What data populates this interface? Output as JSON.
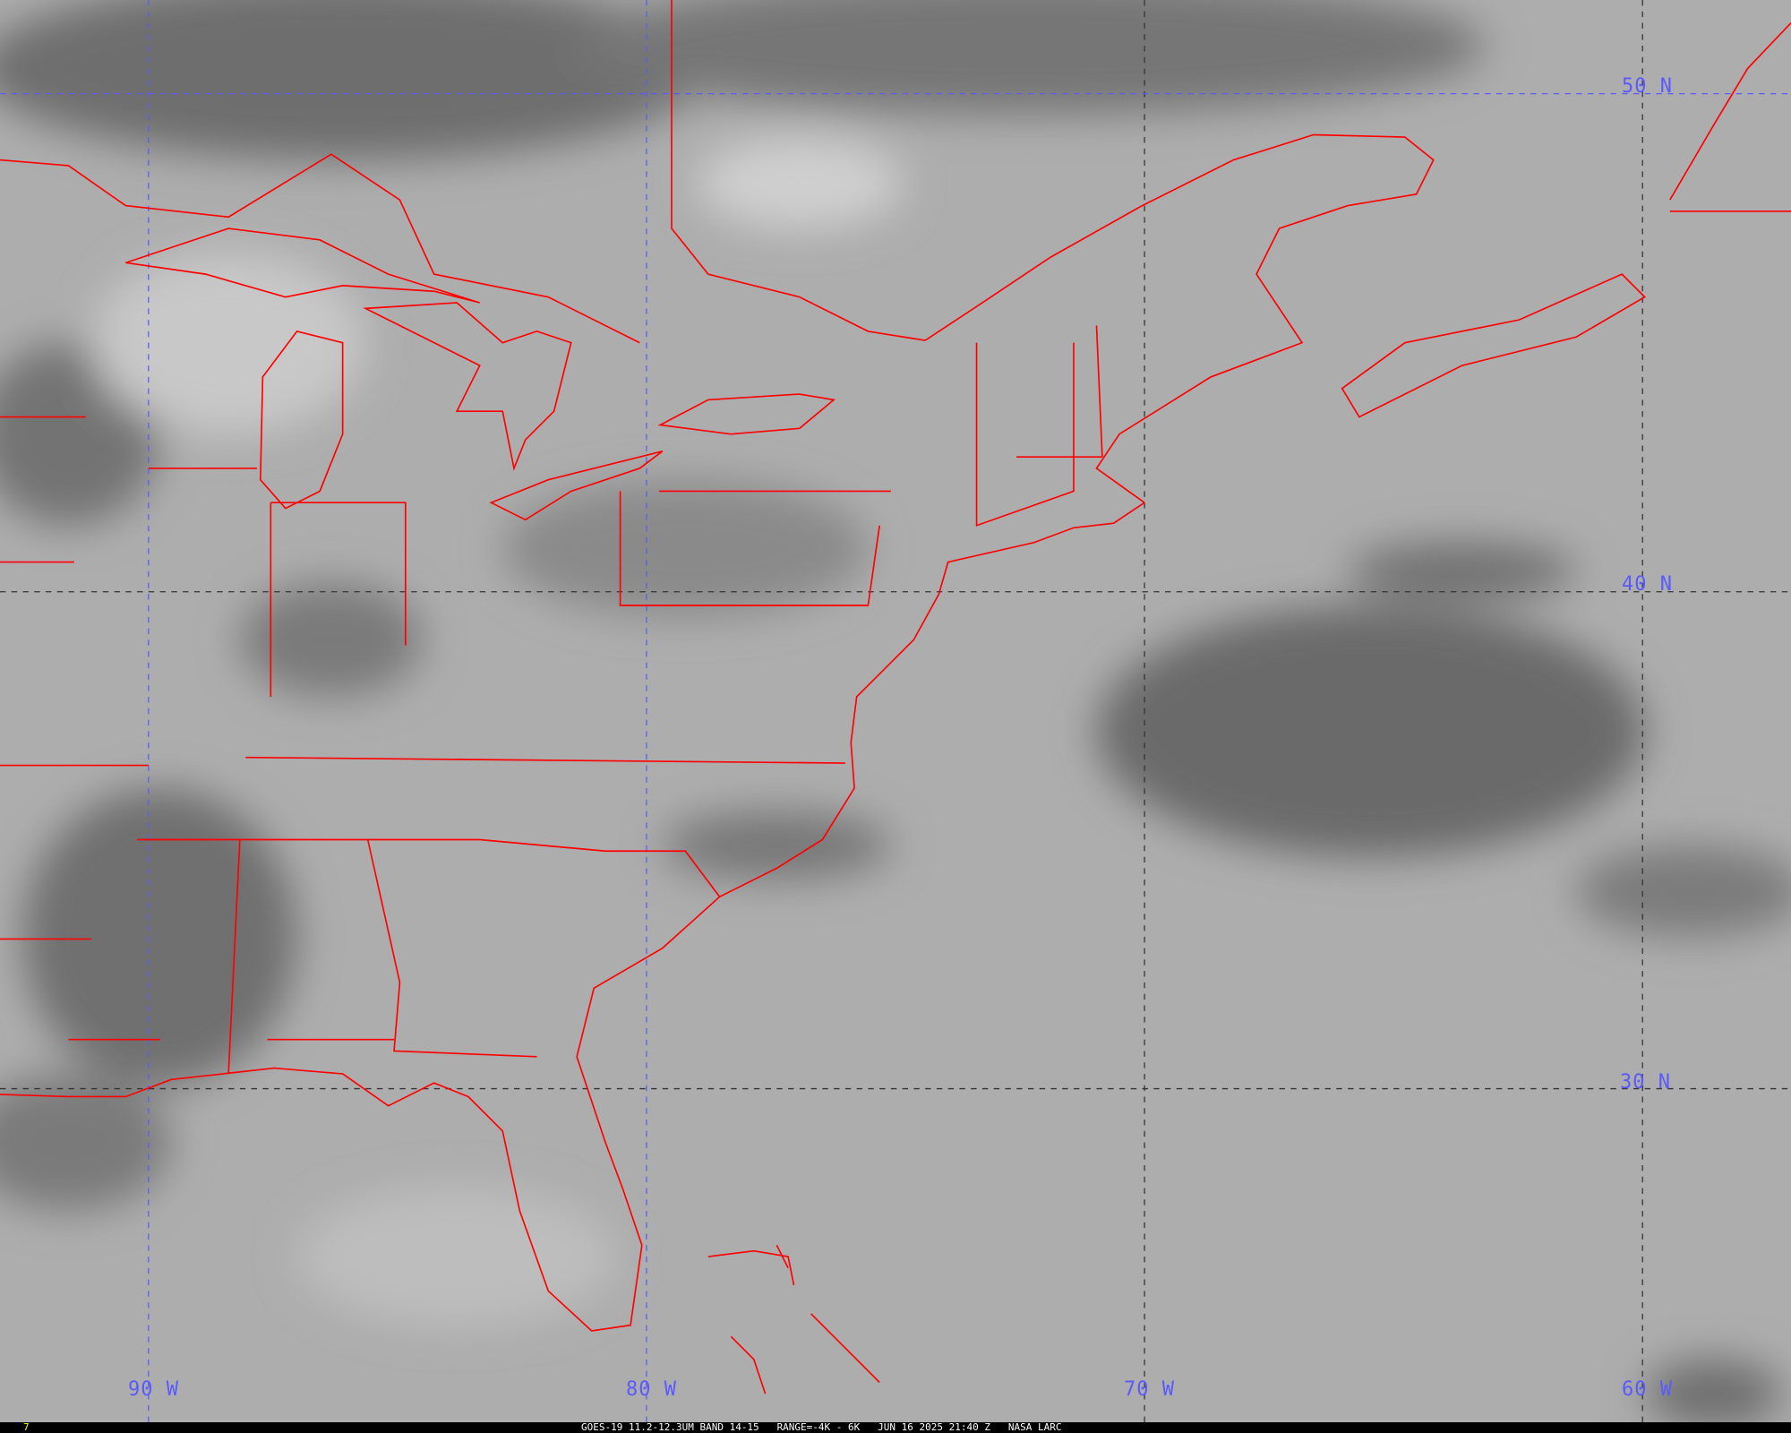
{
  "map": {
    "type": "satellite infrared imagery",
    "border_color": "#ff0000",
    "grid_color": "#5a5aff",
    "lat_labels": [
      "50 N",
      "40 N",
      "30 N"
    ],
    "lon_labels": [
      "90 W",
      "80 W",
      "70 W",
      "60 W"
    ]
  },
  "status_bar": {
    "frame_number": "7",
    "satellite": "GOES-19",
    "band": "11.2-12.3UM BAND 14-15",
    "range": "RANGE=-4K - 6K",
    "datetime": "JUN 16 2025 21:40 Z",
    "source": "NASA LARC"
  }
}
